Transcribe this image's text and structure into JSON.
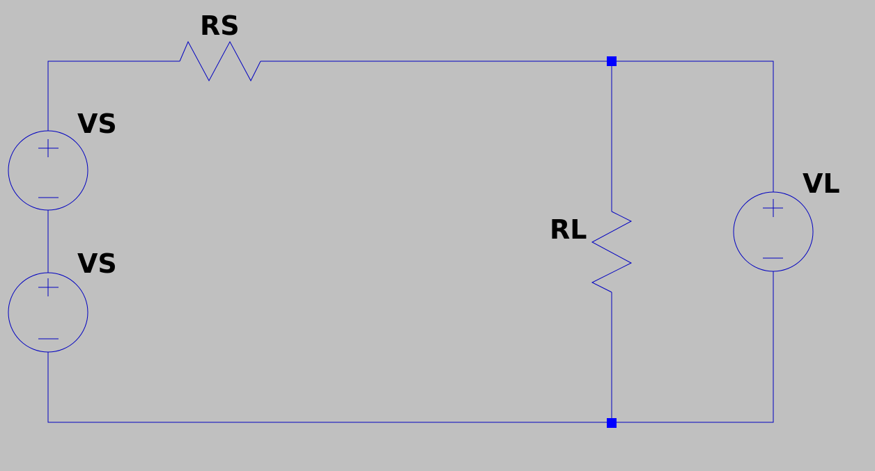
{
  "colors": {
    "background": "#c0c0c0",
    "wire": "#0000c0",
    "junction": "#0000ff",
    "label": "#000000"
  },
  "components": {
    "rs": {
      "label": "RS",
      "kind": "resistor"
    },
    "rl": {
      "label": "RL",
      "kind": "resistor"
    },
    "vs_top": {
      "label": "VS",
      "kind": "voltage-source"
    },
    "vs_bottom": {
      "label": "VS",
      "kind": "voltage-source"
    },
    "vl": {
      "label": "VL",
      "kind": "voltage-source"
    }
  }
}
